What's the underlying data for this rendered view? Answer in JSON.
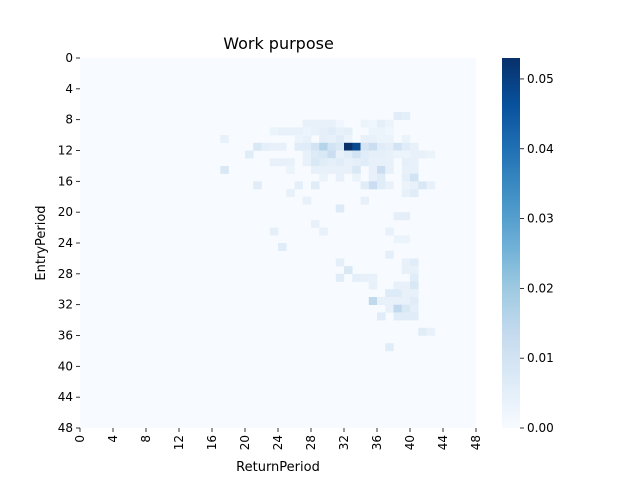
{
  "chart_data": {
    "type": "heatmap",
    "title": "Work purpose",
    "xlabel": "ReturnPeriod",
    "ylabel": "EntryPeriod",
    "x_tick_labels": [
      "0",
      "4",
      "8",
      "12",
      "16",
      "20",
      "24",
      "28",
      "32",
      "36",
      "40",
      "44",
      "48"
    ],
    "y_tick_labels": [
      "0",
      "4",
      "8",
      "12",
      "16",
      "20",
      "24",
      "28",
      "32",
      "36",
      "40",
      "44",
      "48"
    ],
    "grid_size": 48,
    "colorbar": {
      "min": 0.0,
      "max": 0.053,
      "tick_labels": [
        "0.00",
        "0.01",
        "0.02",
        "0.03",
        "0.04",
        "0.05"
      ],
      "tick_values": [
        0.0,
        0.01,
        0.02,
        0.03,
        0.04,
        0.05
      ],
      "colormap": "Blues"
    },
    "cells": [
      [
        7,
        38,
        0.006
      ],
      [
        7,
        39,
        0.005
      ],
      [
        8,
        27,
        0.004
      ],
      [
        8,
        28,
        0.004
      ],
      [
        8,
        29,
        0.004
      ],
      [
        8,
        30,
        0.004
      ],
      [
        8,
        31,
        0.002
      ],
      [
        8,
        34,
        0.003
      ],
      [
        8,
        35,
        0.002
      ],
      [
        8,
        36,
        0.005
      ],
      [
        8,
        37,
        0.003
      ],
      [
        9,
        23,
        0.003
      ],
      [
        9,
        24,
        0.004
      ],
      [
        9,
        25,
        0.004
      ],
      [
        9,
        26,
        0.004
      ],
      [
        9,
        27,
        0.003
      ],
      [
        9,
        28,
        0.004
      ],
      [
        9,
        29,
        0.005
      ],
      [
        9,
        30,
        0.006
      ],
      [
        9,
        31,
        0.004
      ],
      [
        9,
        32,
        0.005
      ],
      [
        9,
        35,
        0.003
      ],
      [
        9,
        36,
        0.003
      ],
      [
        9,
        37,
        0.002
      ],
      [
        10,
        17,
        0.004
      ],
      [
        10,
        26,
        0.003
      ],
      [
        10,
        27,
        0.004
      ],
      [
        10,
        29,
        0.005
      ],
      [
        10,
        30,
        0.004
      ],
      [
        10,
        31,
        0.006
      ],
      [
        10,
        32,
        0.003
      ],
      [
        10,
        34,
        0.004
      ],
      [
        10,
        35,
        0.004
      ],
      [
        10,
        36,
        0.003
      ],
      [
        10,
        37,
        0.003
      ],
      [
        10,
        39,
        0.003
      ],
      [
        11,
        21,
        0.008
      ],
      [
        11,
        22,
        0.005
      ],
      [
        11,
        23,
        0.004
      ],
      [
        11,
        24,
        0.004
      ],
      [
        11,
        26,
        0.006
      ],
      [
        11,
        27,
        0.006
      ],
      [
        11,
        28,
        0.01
      ],
      [
        11,
        29,
        0.016
      ],
      [
        11,
        30,
        0.01
      ],
      [
        11,
        31,
        0.008
      ],
      [
        11,
        32,
        0.053
      ],
      [
        11,
        33,
        0.048
      ],
      [
        11,
        34,
        0.009
      ],
      [
        11,
        35,
        0.012
      ],
      [
        11,
        36,
        0.006
      ],
      [
        11,
        37,
        0.005
      ],
      [
        11,
        38,
        0.01
      ],
      [
        11,
        39,
        0.006
      ],
      [
        11,
        40,
        0.004
      ],
      [
        12,
        20,
        0.006
      ],
      [
        12,
        27,
        0.004
      ],
      [
        12,
        28,
        0.007
      ],
      [
        12,
        29,
        0.008
      ],
      [
        12,
        30,
        0.012
      ],
      [
        12,
        31,
        0.004
      ],
      [
        12,
        32,
        0.006
      ],
      [
        12,
        33,
        0.01
      ],
      [
        12,
        34,
        0.006
      ],
      [
        12,
        35,
        0.005
      ],
      [
        12,
        36,
        0.005
      ],
      [
        12,
        37,
        0.004
      ],
      [
        12,
        38,
        0.003
      ],
      [
        12,
        39,
        0.003
      ],
      [
        12,
        40,
        0.004
      ],
      [
        12,
        41,
        0.004
      ],
      [
        12,
        42,
        0.003
      ],
      [
        13,
        23,
        0.004
      ],
      [
        13,
        24,
        0.004
      ],
      [
        13,
        25,
        0.004
      ],
      [
        13,
        27,
        0.004
      ],
      [
        13,
        28,
        0.008
      ],
      [
        13,
        29,
        0.006
      ],
      [
        13,
        30,
        0.005
      ],
      [
        13,
        31,
        0.006
      ],
      [
        13,
        32,
        0.004
      ],
      [
        13,
        33,
        0.005
      ],
      [
        13,
        34,
        0.006
      ],
      [
        13,
        35,
        0.004
      ],
      [
        13,
        36,
        0.004
      ],
      [
        13,
        37,
        0.004
      ],
      [
        13,
        39,
        0.005
      ],
      [
        13,
        40,
        0.004
      ],
      [
        14,
        17,
        0.008
      ],
      [
        14,
        25,
        0.003
      ],
      [
        14,
        28,
        0.004
      ],
      [
        14,
        29,
        0.004
      ],
      [
        14,
        30,
        0.004
      ],
      [
        14,
        31,
        0.004
      ],
      [
        14,
        32,
        0.004
      ],
      [
        14,
        33,
        0.008
      ],
      [
        14,
        35,
        0.004
      ],
      [
        14,
        36,
        0.012
      ],
      [
        14,
        37,
        0.004
      ],
      [
        14,
        39,
        0.004
      ],
      [
        14,
        40,
        0.004
      ],
      [
        15,
        29,
        0.003
      ],
      [
        15,
        31,
        0.004
      ],
      [
        15,
        33,
        0.003
      ],
      [
        15,
        35,
        0.004
      ],
      [
        15,
        36,
        0.006
      ],
      [
        15,
        39,
        0.005
      ],
      [
        15,
        40,
        0.01
      ],
      [
        16,
        21,
        0.006
      ],
      [
        16,
        26,
        0.005
      ],
      [
        16,
        28,
        0.006
      ],
      [
        16,
        34,
        0.006
      ],
      [
        16,
        35,
        0.012
      ],
      [
        16,
        36,
        0.006
      ],
      [
        16,
        37,
        0.004
      ],
      [
        16,
        39,
        0.003
      ],
      [
        16,
        40,
        0.004
      ],
      [
        16,
        41,
        0.008
      ],
      [
        16,
        42,
        0.004
      ],
      [
        17,
        25,
        0.004
      ],
      [
        17,
        39,
        0.004
      ],
      [
        17,
        40,
        0.006
      ],
      [
        18,
        27,
        0.004
      ],
      [
        18,
        34,
        0.004
      ],
      [
        19,
        31,
        0.007
      ],
      [
        20,
        38,
        0.005
      ],
      [
        20,
        39,
        0.005
      ],
      [
        21,
        28,
        0.004
      ],
      [
        22,
        23,
        0.005
      ],
      [
        22,
        29,
        0.004
      ],
      [
        22,
        37,
        0.004
      ],
      [
        23,
        38,
        0.003
      ],
      [
        23,
        39,
        0.003
      ],
      [
        24,
        24,
        0.006
      ],
      [
        25,
        37,
        0.005
      ],
      [
        26,
        31,
        0.005
      ],
      [
        26,
        39,
        0.004
      ],
      [
        26,
        40,
        0.006
      ],
      [
        27,
        32,
        0.008
      ],
      [
        27,
        39,
        0.004
      ],
      [
        27,
        40,
        0.004
      ],
      [
        28,
        31,
        0.006
      ],
      [
        28,
        33,
        0.005
      ],
      [
        28,
        34,
        0.004
      ],
      [
        28,
        35,
        0.004
      ],
      [
        28,
        40,
        0.006
      ],
      [
        29,
        35,
        0.004
      ],
      [
        29,
        38,
        0.004
      ],
      [
        29,
        39,
        0.004
      ],
      [
        29,
        40,
        0.008
      ],
      [
        30,
        37,
        0.007
      ],
      [
        30,
        38,
        0.007
      ],
      [
        30,
        39,
        0.004
      ],
      [
        30,
        40,
        0.004
      ],
      [
        31,
        35,
        0.014
      ],
      [
        31,
        36,
        0.004
      ],
      [
        31,
        37,
        0.004
      ],
      [
        31,
        38,
        0.004
      ],
      [
        31,
        39,
        0.004
      ],
      [
        31,
        40,
        0.006
      ],
      [
        32,
        37,
        0.004
      ],
      [
        32,
        38,
        0.014
      ],
      [
        32,
        39,
        0.008
      ],
      [
        32,
        40,
        0.005
      ],
      [
        33,
        36,
        0.006
      ],
      [
        33,
        38,
        0.006
      ],
      [
        33,
        39,
        0.006
      ],
      [
        33,
        40,
        0.006
      ],
      [
        35,
        41,
        0.006
      ],
      [
        35,
        42,
        0.004
      ],
      [
        37,
        37,
        0.006
      ]
    ]
  }
}
